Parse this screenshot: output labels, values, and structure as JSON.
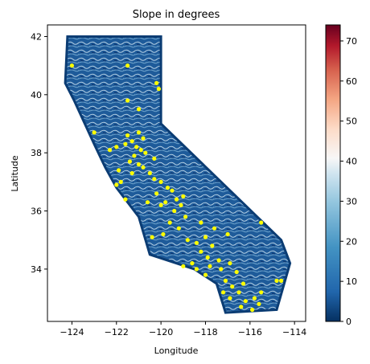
{
  "chart_data": {
    "type": "scatter",
    "title": "Slope in degrees",
    "xlabel": "Longitude",
    "ylabel": "Latitude",
    "xlim": [
      -125.1,
      -113.5
    ],
    "ylim": [
      32.2,
      42.4
    ],
    "x_ticks": [
      -124,
      -122,
      -120,
      -118,
      -116,
      -114
    ],
    "y_ticks": [
      34,
      36,
      38,
      40,
      42
    ],
    "x_tick_labels": [
      "−124",
      "−122",
      "−120",
      "−118",
      "−116",
      "−114"
    ],
    "y_tick_labels": [
      "34",
      "36",
      "38",
      "40",
      "42"
    ],
    "colorbar": {
      "colormap": "RdBu_r",
      "range": [
        0,
        74
      ],
      "ticks": [
        0,
        10,
        20,
        30,
        40,
        50,
        60,
        70
      ],
      "tick_labels": [
        "0",
        "10",
        "20",
        "30",
        "40",
        "50",
        "60",
        "70"
      ]
    },
    "background_field": {
      "description_colors": [
        "#053061",
        "#2166ac",
        "#4393c3",
        "#92c5de",
        "#d1e5f0",
        "#f7f7f7"
      ],
      "outline": [
        [
          -124.2,
          42.0
        ],
        [
          -120.0,
          42.0
        ],
        [
          -120.0,
          39.0
        ],
        [
          -114.6,
          35.0
        ],
        [
          -114.2,
          34.2
        ],
        [
          -114.8,
          32.6
        ],
        [
          -117.1,
          32.5
        ],
        [
          -117.5,
          33.5
        ],
        [
          -118.5,
          34.0
        ],
        [
          -120.5,
          34.5
        ],
        [
          -121.0,
          35.8
        ],
        [
          -122.0,
          36.8
        ],
        [
          -122.5,
          37.5
        ],
        [
          -123.0,
          38.3
        ],
        [
          -123.9,
          39.8
        ],
        [
          -124.3,
          40.4
        ],
        [
          -124.2,
          42.0
        ]
      ]
    },
    "series": [
      {
        "color": "#ffff00",
        "points": [
          [
            -124.0,
            41.0
          ],
          [
            -121.5,
            41.0
          ],
          [
            -120.2,
            40.4
          ],
          [
            -120.1,
            40.2
          ],
          [
            -121.5,
            39.8
          ],
          [
            -121.0,
            39.5
          ],
          [
            -123.0,
            38.7
          ],
          [
            -122.0,
            38.2
          ],
          [
            -122.3,
            38.1
          ],
          [
            -121.5,
            38.6
          ],
          [
            -121.3,
            38.4
          ],
          [
            -121.0,
            38.7
          ],
          [
            -120.8,
            38.5
          ],
          [
            -121.6,
            38.3
          ],
          [
            -121.1,
            38.2
          ],
          [
            -120.9,
            38.1
          ],
          [
            -121.2,
            37.9
          ],
          [
            -120.7,
            38.0
          ],
          [
            -121.4,
            37.7
          ],
          [
            -121.0,
            37.6
          ],
          [
            -120.8,
            37.5
          ],
          [
            -120.5,
            37.3
          ],
          [
            -121.3,
            37.3
          ],
          [
            -120.3,
            37.1
          ],
          [
            -120.0,
            37.0
          ],
          [
            -119.7,
            36.8
          ],
          [
            -119.5,
            36.7
          ],
          [
            -120.2,
            36.6
          ],
          [
            -119.3,
            36.4
          ],
          [
            -119.8,
            36.3
          ],
          [
            -119.1,
            36.2
          ],
          [
            -119.4,
            36.0
          ],
          [
            -118.9,
            35.8
          ],
          [
            -119.6,
            35.6
          ],
          [
            -119.2,
            35.4
          ],
          [
            -119.9,
            35.2
          ],
          [
            -120.4,
            35.1
          ],
          [
            -118.8,
            35.0
          ],
          [
            -118.4,
            34.9
          ],
          [
            -118.0,
            35.1
          ],
          [
            -117.7,
            34.8
          ],
          [
            -118.2,
            34.6
          ],
          [
            -117.9,
            34.4
          ],
          [
            -117.4,
            34.3
          ],
          [
            -117.8,
            34.1
          ],
          [
            -117.3,
            34.0
          ],
          [
            -116.9,
            34.2
          ],
          [
            -116.6,
            33.9
          ],
          [
            -117.1,
            33.6
          ],
          [
            -116.8,
            33.4
          ],
          [
            -116.3,
            33.5
          ],
          [
            -116.5,
            33.2
          ],
          [
            -116.9,
            33.0
          ],
          [
            -116.2,
            32.9
          ],
          [
            -115.8,
            33.0
          ],
          [
            -115.6,
            32.8
          ],
          [
            -115.9,
            32.6
          ],
          [
            -116.4,
            32.7
          ],
          [
            -115.5,
            33.2
          ],
          [
            -114.8,
            33.6
          ],
          [
            -114.6,
            33.6
          ],
          [
            -115.5,
            35.6
          ],
          [
            -118.2,
            35.6
          ],
          [
            -117.0,
            35.2
          ],
          [
            -117.6,
            35.4
          ],
          [
            -121.6,
            36.4
          ],
          [
            -122.0,
            36.9
          ],
          [
            -121.8,
            37.0
          ],
          [
            -120.6,
            36.3
          ],
          [
            -118.6,
            34.2
          ],
          [
            -119.0,
            34.1
          ],
          [
            -118.4,
            34.0
          ],
          [
            -120.0,
            36.2
          ],
          [
            -119.0,
            36.5
          ],
          [
            -120.3,
            37.8
          ],
          [
            -121.9,
            37.4
          ],
          [
            -117.2,
            33.2
          ],
          [
            -118.0,
            33.8
          ]
        ]
      }
    ]
  }
}
